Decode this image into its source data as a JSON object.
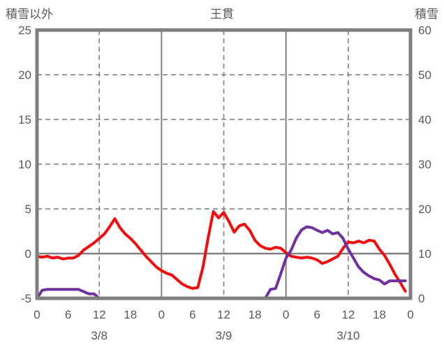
{
  "header": {
    "left_axis_title": "積雪以外",
    "station_title": "王貫",
    "right_axis_title": "積雪"
  },
  "colors": {
    "text": "#595959",
    "frame": "#7f7f7f",
    "grid": "#8c8c8c",
    "non_snow_line": "#f20c0c",
    "snow_line": "#7030a0"
  },
  "chart_data": {
    "type": "line",
    "title": "王貫",
    "legend_position": "none",
    "left_axis": {
      "label": "積雪以外",
      "min": -5,
      "max": 25,
      "ticks": [
        25,
        20,
        15,
        10,
        5,
        0,
        -5
      ]
    },
    "right_axis": {
      "label": "積雪",
      "min": 0,
      "max": 60,
      "ticks": [
        60,
        50,
        40,
        30,
        20,
        10,
        0
      ]
    },
    "x_axis": {
      "hours_total": 72,
      "tick_hours": [
        0,
        6,
        12,
        18,
        24,
        30,
        36,
        42,
        48,
        54,
        60,
        66,
        72
      ],
      "tick_labels": [
        "0",
        "6",
        "12",
        "18",
        "0",
        "6",
        "12",
        "18",
        "0",
        "6",
        "12",
        "18",
        "0"
      ],
      "date_labels": [
        {
          "text": "3/8",
          "center_hour": 12
        },
        {
          "text": "3/9",
          "center_hour": 36
        },
        {
          "text": "3/10",
          "center_hour": 60
        }
      ]
    },
    "grid": {
      "h_dashed_left_values": [
        20,
        15,
        10,
        5
      ],
      "h_solid_left_values": [
        0
      ],
      "v_dashed_hours": [
        12,
        36,
        60
      ],
      "v_solid_hours": [
        24,
        48
      ]
    },
    "series": [
      {
        "name": "積雪以外",
        "axis": "left",
        "color": "#f20c0c",
        "x_start_hour": 0,
        "x_step_hours": 1,
        "values": [
          -0.3,
          -0.4,
          -0.3,
          -0.5,
          -0.4,
          -0.6,
          -0.5,
          -0.5,
          -0.2,
          0.4,
          0.8,
          1.2,
          1.7,
          2.2,
          3.0,
          3.9,
          2.9,
          2.2,
          1.7,
          1.1,
          0.4,
          -0.3,
          -0.9,
          -1.5,
          -1.9,
          -2.2,
          -2.4,
          -2.9,
          -3.4,
          -3.7,
          -3.9,
          -3.8,
          -1.5,
          1.8,
          4.7,
          4.0,
          4.6,
          3.6,
          2.4,
          3.1,
          3.3,
          2.6,
          1.5,
          0.9,
          0.6,
          0.5,
          0.7,
          0.6,
          0.1,
          -0.3,
          -0.4,
          -0.5,
          -0.4,
          -0.5,
          -0.7,
          -1.1,
          -0.9,
          -0.6,
          -0.3,
          0.6,
          1.3,
          1.2,
          1.4,
          1.2,
          1.5,
          1.4,
          0.5,
          -0.2,
          -1.2,
          -2.3,
          -3.2,
          -4.2
        ]
      },
      {
        "name": "積雪",
        "axis": "right",
        "color": "#7030a0",
        "x_start_hour": 0,
        "x_step_hours": 1,
        "values": [
          0,
          1.8,
          2,
          2,
          2,
          2,
          2,
          2,
          2,
          1.5,
          1,
          1,
          0,
          0,
          0,
          0,
          0,
          0,
          0,
          0,
          0,
          0,
          0,
          0,
          0,
          0,
          0,
          0,
          0,
          0,
          0,
          0,
          0,
          0,
          0,
          0,
          0,
          0,
          0,
          0,
          0,
          0,
          0,
          0,
          0,
          2,
          2.2,
          5.5,
          9,
          10.8,
          13.5,
          15.3,
          16,
          15.8,
          15.2,
          14.7,
          15.2,
          14.4,
          14.7,
          13.4,
          11,
          9,
          7,
          5.8,
          5.0,
          4.4,
          4.1,
          3.2,
          3.9,
          3.9,
          3.9,
          3.9
        ]
      }
    ]
  }
}
